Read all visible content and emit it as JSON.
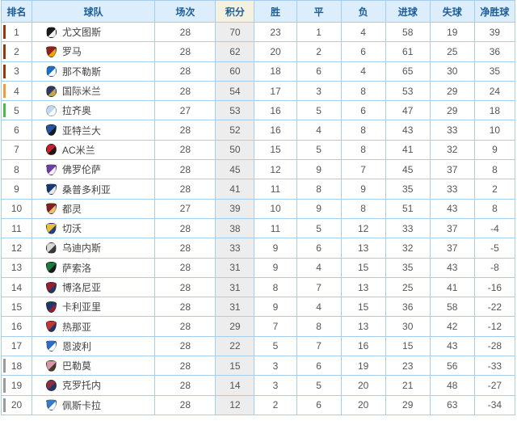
{
  "standings": {
    "columns": [
      "排名",
      "球队",
      "场次",
      "积分",
      "胜",
      "平",
      "负",
      "进球",
      "失球",
      "净胜球"
    ],
    "zone_colors": {
      "cl": "#933912",
      "cl_q": "#f09d3a",
      "el": "#4db84d",
      "rel": "#9b9b9b"
    },
    "rows": [
      {
        "rank": "1",
        "team": "尤文图斯",
        "zone": "cl",
        "logo": {
          "icon": "juventus-crest-icon",
          "shape": "circle",
          "c1": "#1a1a1a",
          "c2": "#f2f2f2"
        },
        "played": "28",
        "points": "70",
        "win": "23",
        "draw": "1",
        "loss": "4",
        "gf": "58",
        "ga": "19",
        "gd": "39"
      },
      {
        "rank": "2",
        "team": "罗马",
        "zone": "cl",
        "logo": {
          "icon": "roma-crest-icon",
          "shape": "shield",
          "c1": "#8e1f2f",
          "c2": "#f0a500"
        },
        "played": "28",
        "points": "62",
        "win": "20",
        "draw": "2",
        "loss": "6",
        "gf": "61",
        "ga": "25",
        "gd": "36"
      },
      {
        "rank": "3",
        "team": "那不勒斯",
        "zone": "cl",
        "logo": {
          "icon": "napoli-crest-icon",
          "shape": "circle",
          "c1": "#1e6fc0",
          "c2": "#ffffff"
        },
        "played": "28",
        "points": "60",
        "win": "18",
        "draw": "6",
        "loss": "4",
        "gf": "65",
        "ga": "30",
        "gd": "35"
      },
      {
        "rank": "4",
        "team": "国际米兰",
        "zone": "cl_q",
        "logo": {
          "icon": "inter-crest-icon",
          "shape": "circle",
          "c1": "#2b3a66",
          "c2": "#c9a44c"
        },
        "played": "28",
        "points": "54",
        "win": "17",
        "draw": "3",
        "loss": "8",
        "gf": "53",
        "ga": "29",
        "gd": "24"
      },
      {
        "rank": "5",
        "team": "拉齐奥",
        "zone": "el",
        "logo": {
          "icon": "lazio-crest-icon",
          "shape": "circle",
          "c1": "#bcd9ef",
          "c2": "#ffffff"
        },
        "played": "27",
        "points": "53",
        "win": "16",
        "draw": "5",
        "loss": "6",
        "gf": "47",
        "ga": "29",
        "gd": "18"
      },
      {
        "rank": "6",
        "team": "亚特兰大",
        "zone": "",
        "logo": {
          "icon": "atalanta-crest-icon",
          "shape": "shield",
          "c1": "#2456a4",
          "c2": "#1a1a1a"
        },
        "played": "28",
        "points": "52",
        "win": "16",
        "draw": "4",
        "loss": "8",
        "gf": "43",
        "ga": "33",
        "gd": "10"
      },
      {
        "rank": "7",
        "team": "AC米兰",
        "zone": "",
        "logo": {
          "icon": "milan-crest-icon",
          "shape": "circle",
          "c1": "#c81e2d",
          "c2": "#1a1a1a"
        },
        "played": "28",
        "points": "50",
        "win": "15",
        "draw": "5",
        "loss": "8",
        "gf": "41",
        "ga": "32",
        "gd": "9"
      },
      {
        "rank": "8",
        "team": "佛罗伦萨",
        "zone": "",
        "logo": {
          "icon": "fiorentina-crest-icon",
          "shape": "shield",
          "c1": "#6b3fa0",
          "c2": "#f5f0f5"
        },
        "played": "28",
        "points": "45",
        "win": "12",
        "draw": "9",
        "loss": "7",
        "gf": "45",
        "ga": "37",
        "gd": "8"
      },
      {
        "rank": "9",
        "team": "桑普多利亚",
        "zone": "",
        "logo": {
          "icon": "sampdoria-crest-icon",
          "shape": "shield",
          "c1": "#17386e",
          "c2": "#e8e8e8"
        },
        "played": "28",
        "points": "41",
        "win": "11",
        "draw": "8",
        "loss": "9",
        "gf": "35",
        "ga": "33",
        "gd": "2"
      },
      {
        "rank": "10",
        "team": "都灵",
        "zone": "",
        "logo": {
          "icon": "torino-crest-icon",
          "shape": "shield",
          "c1": "#7e1f2d",
          "c2": "#e8c56a"
        },
        "played": "27",
        "points": "39",
        "win": "10",
        "draw": "9",
        "loss": "8",
        "gf": "51",
        "ga": "43",
        "gd": "8"
      },
      {
        "rank": "11",
        "team": "切沃",
        "zone": "",
        "logo": {
          "icon": "chievo-crest-icon",
          "shape": "shield",
          "c1": "#e8c13a",
          "c2": "#23408f"
        },
        "played": "28",
        "points": "38",
        "win": "11",
        "draw": "5",
        "loss": "12",
        "gf": "33",
        "ga": "37",
        "gd": "-4"
      },
      {
        "rank": "12",
        "team": "乌迪内斯",
        "zone": "",
        "logo": {
          "icon": "udinese-crest-icon",
          "shape": "circle",
          "c1": "#d8d8d8",
          "c2": "#3a3a3a"
        },
        "played": "28",
        "points": "33",
        "win": "9",
        "draw": "6",
        "loss": "13",
        "gf": "32",
        "ga": "37",
        "gd": "-5"
      },
      {
        "rank": "13",
        "team": "萨索洛",
        "zone": "",
        "logo": {
          "icon": "sassuolo-crest-icon",
          "shape": "shield",
          "c1": "#1a7a3c",
          "c2": "#1a1a1a"
        },
        "played": "28",
        "points": "31",
        "win": "9",
        "draw": "4",
        "loss": "15",
        "gf": "35",
        "ga": "43",
        "gd": "-8"
      },
      {
        "rank": "14",
        "team": "博洛尼亚",
        "zone": "",
        "logo": {
          "icon": "bologna-crest-icon",
          "shape": "shield",
          "c1": "#9a1f2e",
          "c2": "#1b3a6b"
        },
        "played": "28",
        "points": "31",
        "win": "8",
        "draw": "7",
        "loss": "13",
        "gf": "25",
        "ga": "41",
        "gd": "-16"
      },
      {
        "rank": "15",
        "team": "卡利亚里",
        "zone": "",
        "logo": {
          "icon": "cagliari-crest-icon",
          "shape": "shield",
          "c1": "#1b3a6b",
          "c2": "#9a1f2e"
        },
        "played": "28",
        "points": "31",
        "win": "9",
        "draw": "4",
        "loss": "15",
        "gf": "36",
        "ga": "58",
        "gd": "-22"
      },
      {
        "rank": "16",
        "team": "热那亚",
        "zone": "",
        "logo": {
          "icon": "genoa-crest-icon",
          "shape": "shield",
          "c1": "#c0392b",
          "c2": "#1b3a6b"
        },
        "played": "28",
        "points": "29",
        "win": "7",
        "draw": "8",
        "loss": "13",
        "gf": "30",
        "ga": "42",
        "gd": "-12"
      },
      {
        "rank": "17",
        "team": "恩波利",
        "zone": "",
        "logo": {
          "icon": "empoli-crest-icon",
          "shape": "shield",
          "c1": "#2e6bc4",
          "c2": "#ffffff"
        },
        "played": "28",
        "points": "22",
        "win": "5",
        "draw": "7",
        "loss": "16",
        "gf": "15",
        "ga": "43",
        "gd": "-28"
      },
      {
        "rank": "18",
        "team": "巴勒莫",
        "zone": "rel",
        "logo": {
          "icon": "palermo-crest-icon",
          "shape": "shield",
          "c1": "#d897a8",
          "c2": "#4a3a2a"
        },
        "played": "28",
        "points": "15",
        "win": "3",
        "draw": "6",
        "loss": "19",
        "gf": "23",
        "ga": "56",
        "gd": "-33"
      },
      {
        "rank": "19",
        "team": "克罗托内",
        "zone": "rel",
        "logo": {
          "icon": "crotone-crest-icon",
          "shape": "circle",
          "c1": "#8e2f3f",
          "c2": "#1b3a6b"
        },
        "played": "28",
        "points": "14",
        "win": "3",
        "draw": "5",
        "loss": "20",
        "gf": "21",
        "ga": "48",
        "gd": "-27"
      },
      {
        "rank": "20",
        "team": "佩斯卡拉",
        "zone": "rel",
        "logo": {
          "icon": "pescara-crest-icon",
          "shape": "shield",
          "c1": "#3a7bc8",
          "c2": "#ffffff"
        },
        "played": "28",
        "points": "12",
        "win": "2",
        "draw": "6",
        "loss": "20",
        "gf": "29",
        "ga": "63",
        "gd": "-34"
      }
    ]
  }
}
